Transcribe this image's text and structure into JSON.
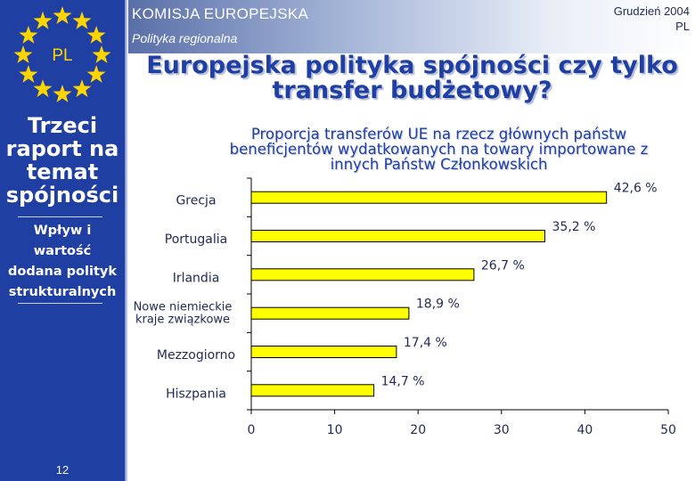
{
  "header": {
    "organization": "KOMISJA EUROPEJSKA",
    "department": "Polityka regionalna",
    "date_line1": "Grudzień 2004",
    "date_line2": "PL"
  },
  "sidebar": {
    "country_code": "PL",
    "title_lines": [
      "Trzeci",
      "raport na",
      "temat",
      "spójności"
    ],
    "subtitle_lines": [
      "Wpływ i",
      "wartość",
      "dodana polityk",
      "strukturalnych"
    ],
    "page_number": "12"
  },
  "main_title": {
    "line1": "Europejska polityka spójności czy tylko",
    "line2": "transfer budżetowy?"
  },
  "colors": {
    "accent_blue": "#1f3fa3",
    "bar_fill": "#ffff00",
    "star_yellow": "#ffd500"
  },
  "chart_data": {
    "type": "bar",
    "orientation": "horizontal",
    "title_lines": [
      "Proporcja transferów UE na rzecz głównych państw",
      "beneficjentów wydatkowanych na towary importowane z",
      "innych Państw Członkowskich"
    ],
    "categories": [
      [
        "Grecja"
      ],
      [
        "Portugalia"
      ],
      [
        "Irlandia"
      ],
      [
        "Nowe niemieckie",
        "kraje związkowe"
      ],
      [
        "Mezzogiorno"
      ],
      [
        "Hiszpania"
      ]
    ],
    "values": [
      42.6,
      35.2,
      26.7,
      18.9,
      17.4,
      14.7
    ],
    "value_labels": [
      "42,6 %",
      "35,2 %",
      "26,7 %",
      "18,9 %",
      "17,4 %",
      "14,7 %"
    ],
    "xlim": [
      0,
      50
    ],
    "xticks": [
      0,
      10,
      20,
      30,
      40,
      50
    ],
    "grid": false,
    "legend": "none"
  }
}
